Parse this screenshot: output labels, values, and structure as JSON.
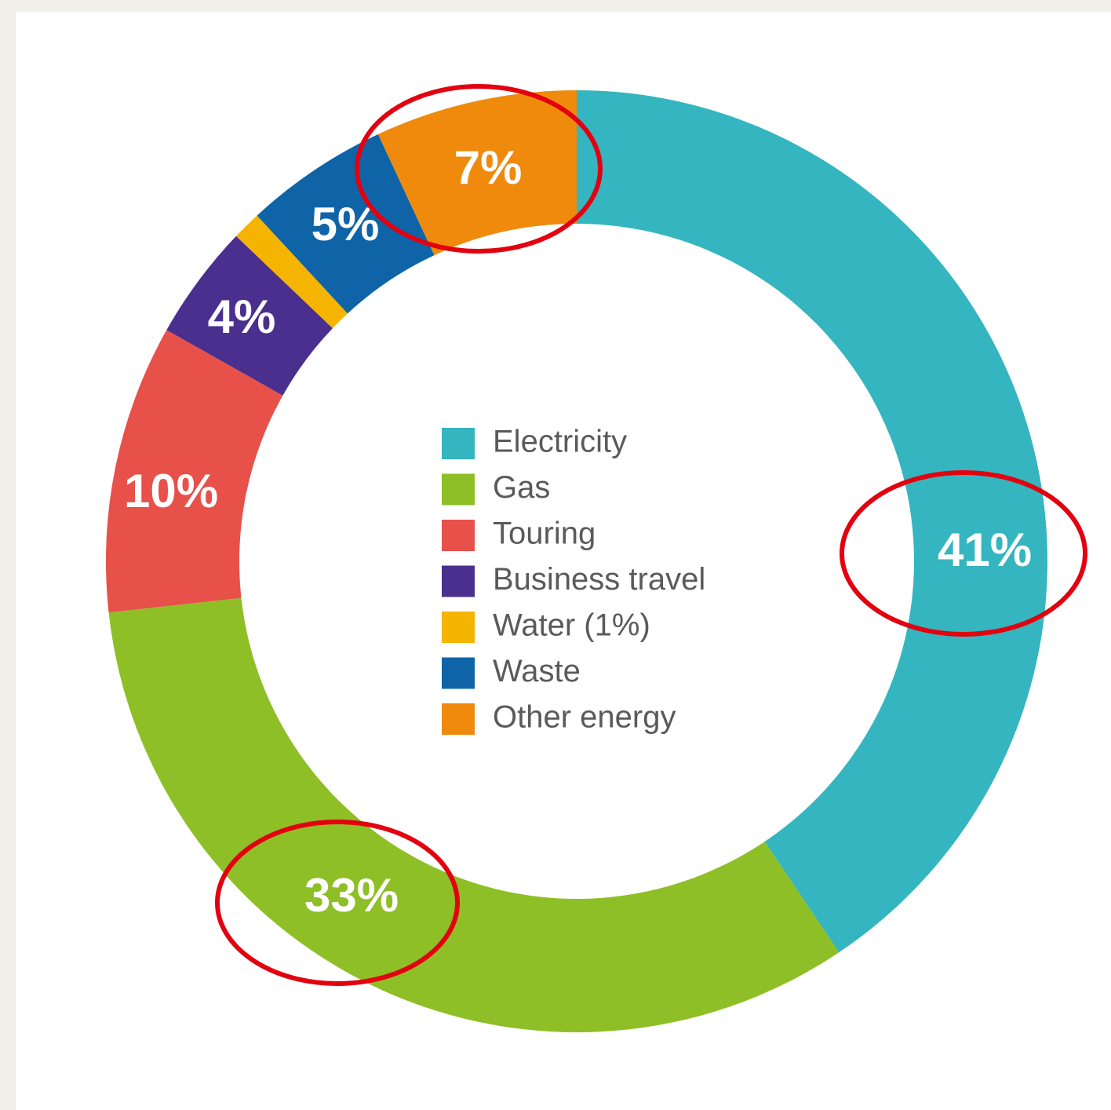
{
  "chart_data": {
    "type": "donut",
    "categories": [
      "Electricity",
      "Gas",
      "Touring",
      "Business travel",
      "Water (1%)",
      "Waste",
      "Other energy"
    ],
    "values": [
      41,
      33,
      10,
      4,
      1,
      5,
      7
    ],
    "value_labels": [
      "41%",
      "33%",
      "10%",
      "4%",
      null,
      "5%",
      "7%"
    ],
    "colors": [
      "#35b5bf",
      "#8ebf26",
      "#e8504a",
      "#4a2f8f",
      "#f5b400",
      "#0f64a8",
      "#f08a0c"
    ],
    "legend": "center"
  }
}
